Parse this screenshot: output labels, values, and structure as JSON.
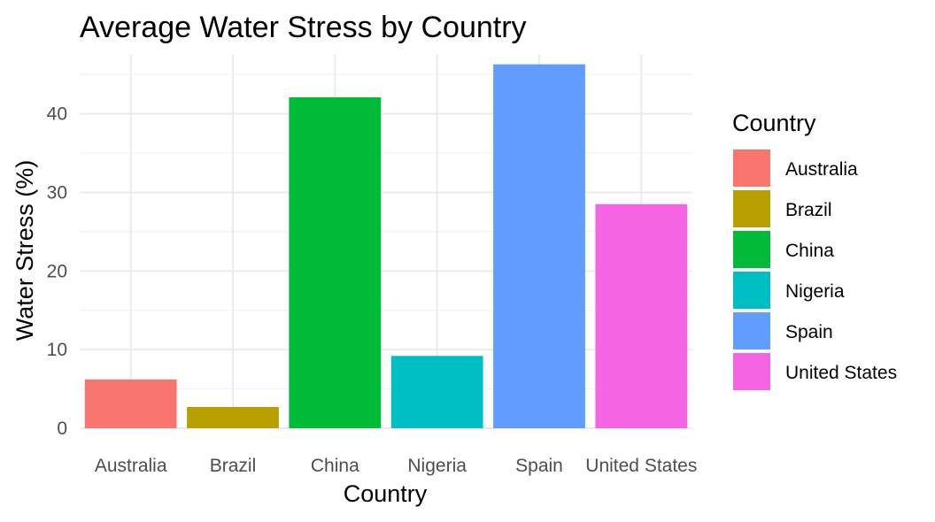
{
  "chart_data": {
    "type": "bar",
    "title": "Average Water Stress by Country",
    "xlabel": "Country",
    "ylabel": "Water Stress (%)",
    "categories": [
      "Australia",
      "Brazil",
      "China",
      "Nigeria",
      "Spain",
      "United States"
    ],
    "values": [
      6.2,
      2.7,
      42.1,
      9.2,
      46.3,
      28.5
    ],
    "colors": [
      "#F8766D",
      "#B79F00",
      "#00BA38",
      "#00BFC4",
      "#619CFF",
      "#F564E3"
    ],
    "ylim": [
      0,
      47.5
    ],
    "yticks": [
      0,
      10,
      20,
      30,
      40
    ],
    "grid": true,
    "legend": {
      "title": "Country",
      "placement": "right",
      "entries": [
        "Australia",
        "Brazil",
        "China",
        "Nigeria",
        "Spain",
        "United States"
      ]
    }
  }
}
